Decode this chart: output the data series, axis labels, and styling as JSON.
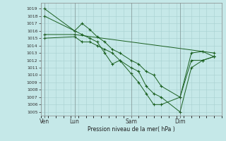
{
  "background_color": "#c5e8e8",
  "grid_color": "#a8d0d0",
  "line_color": "#1a6020",
  "marker_color": "#1a6020",
  "xlabel": "Pression niveau de la mer( hPa )",
  "ylim": [
    1004.5,
    1019.8
  ],
  "yticks": [
    1005,
    1006,
    1007,
    1008,
    1009,
    1010,
    1011,
    1012,
    1013,
    1014,
    1015,
    1016,
    1017,
    1018,
    1019
  ],
  "x_tick_labels": [
    "Ven",
    "Lun",
    "Sam",
    "Dim"
  ],
  "x_tick_positions": [
    0.5,
    4.5,
    12.0,
    18.5
  ],
  "xlim": [
    0,
    24
  ],
  "series": [
    {
      "x": [
        0.5,
        4.5,
        5.5,
        6.5,
        7.5,
        8.5,
        9.5,
        10.5,
        12.0,
        13.0,
        14.0,
        15.0,
        16.0,
        18.5,
        20.0,
        21.5,
        23.0
      ],
      "y": [
        1019,
        1016,
        1017,
        1016.2,
        1015.2,
        1014.5,
        1013.5,
        1013,
        1012,
        1011.5,
        1010.5,
        1010.0,
        1008.5,
        1007,
        1013,
        1013.2,
        1012.5
      ]
    },
    {
      "x": [
        0.5,
        4.5,
        5.5,
        6.5,
        7.5,
        8.5,
        9.5,
        10.5,
        12.0,
        13.0,
        14.0,
        15.0,
        16.0,
        18.5,
        20.0,
        21.5,
        23.0
      ],
      "y": [
        1018,
        1016,
        1015.5,
        1015,
        1014.5,
        1013,
        1011.5,
        1012,
        1010.2,
        1009,
        1007.5,
        1006,
        1006,
        1007,
        1012,
        1012,
        1012.5
      ]
    },
    {
      "x": [
        0.5,
        4.5,
        23.0
      ],
      "y": [
        1015.5,
        1015.5,
        1013
      ]
    },
    {
      "x": [
        0.5,
        4.5,
        5.5,
        6.5,
        7.5,
        8.5,
        9.5,
        10.5,
        12.0,
        13.0,
        14.0,
        15.0,
        16.0,
        18.5,
        20.0,
        21.5,
        23.0
      ],
      "y": [
        1015,
        1015.2,
        1014.5,
        1014.5,
        1014,
        1013.5,
        1013,
        1012,
        1011,
        1010.5,
        1008.5,
        1007.5,
        1007,
        1005,
        1011,
        1012,
        1012.5
      ]
    }
  ]
}
